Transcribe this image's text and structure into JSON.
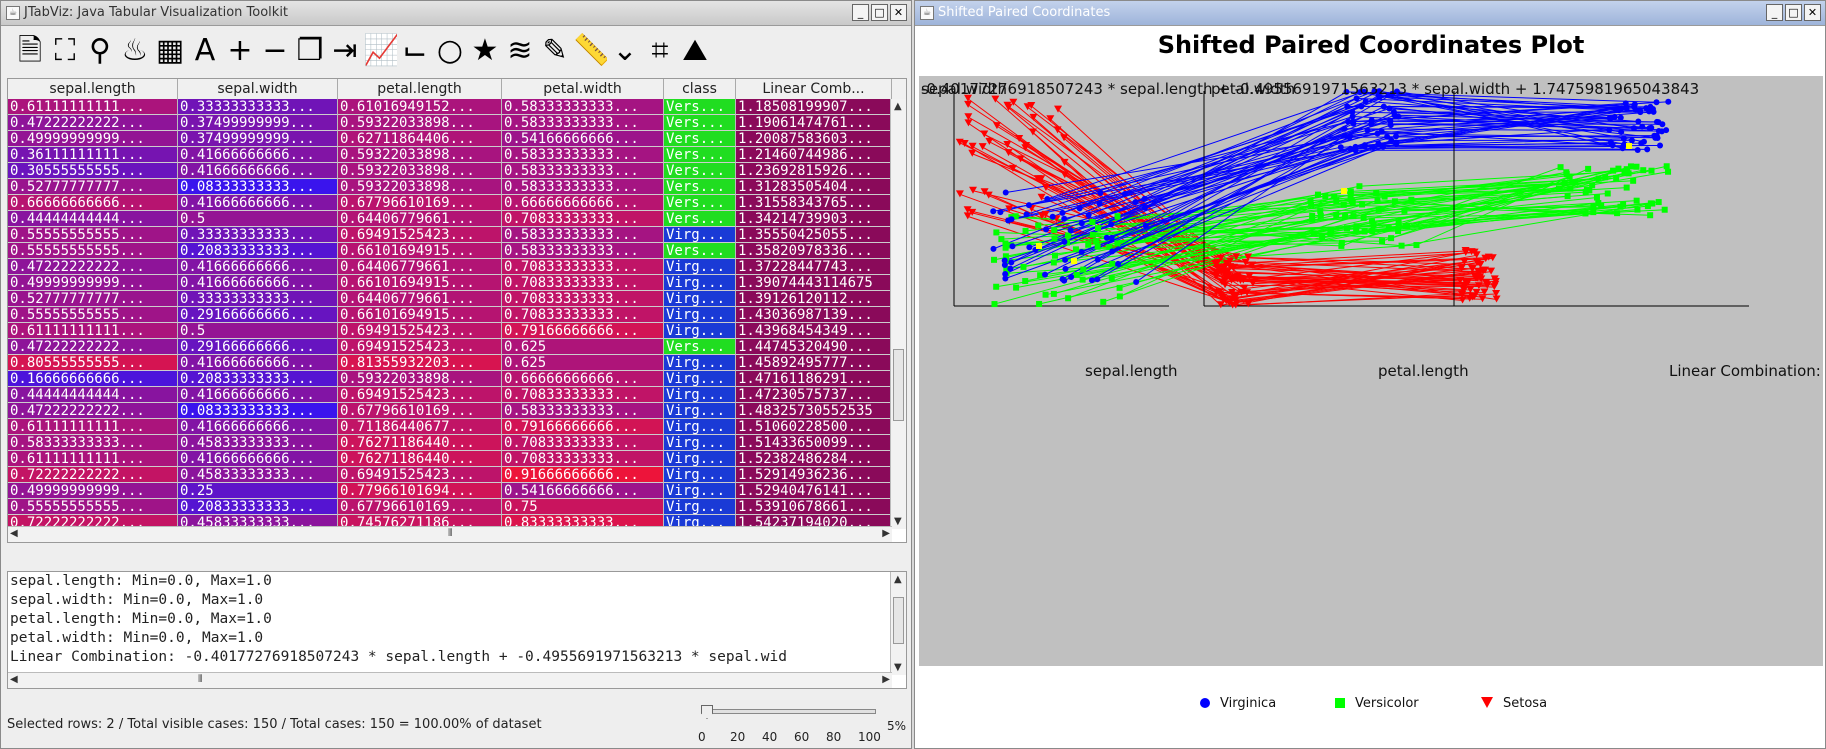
{
  "left_window": {
    "title": "JTabViz: Java Tabular Visualization Toolkit",
    "toolbar_icons": [
      "open-file-icon",
      "fullscreen-icon",
      "location-pin-icon",
      "flame-icon",
      "table-icon",
      "font-icon",
      "plus-icon",
      "minus-icon",
      "copy-icon",
      "export-icon",
      "line-chart-icon",
      "step-chart-icon",
      "circle-icon",
      "star-icon",
      "layers-icon",
      "eyedropper-icon",
      "ruler-icon",
      "chevron-double-down-icon",
      "crop-icon",
      "area-chart-icon"
    ],
    "table": {
      "columns": [
        "sepal.length",
        "sepal.width",
        "petal.length",
        "petal.width",
        "class",
        "Linear Comb..."
      ],
      "rows": [
        [
          "0.61111111111...",
          "0.33333333333...",
          "0.61016949152...",
          "0.58333333333...",
          "Vers...",
          "1.18508199907..."
        ],
        [
          "0.47222222222...",
          "0.37499999999...",
          "0.59322033898...",
          "0.58333333333...",
          "Vers...",
          "1.19061474761..."
        ],
        [
          "0.49999999999...",
          "0.37499999999...",
          "0.62711864406...",
          "0.54166666666...",
          "Vers...",
          "1.20087583603..."
        ],
        [
          "0.36111111111...",
          "0.41666666666...",
          "0.59322033898...",
          "0.58333333333...",
          "Vers...",
          "1.21460744986..."
        ],
        [
          "0.30555555555...",
          "0.41666666666...",
          "0.59322033898...",
          "0.58333333333...",
          "Vers...",
          "1.23692815926..."
        ],
        [
          "0.52777777777...",
          "0.08333333333...",
          "0.59322033898...",
          "0.58333333333...",
          "Vers...",
          "1.31283505404..."
        ],
        [
          "0.66666666666...",
          "0.41666666666...",
          "0.67796610169...",
          "0.66666666666...",
          "Vers...",
          "1.31558343765..."
        ],
        [
          "0.44444444444...",
          "0.5",
          "0.64406779661...",
          "0.70833333333...",
          "Vers...",
          "1.34214739903..."
        ],
        [
          "0.55555555555...",
          "0.33333333333...",
          "0.69491525423...",
          "0.58333333333...",
          "Virg...",
          "1.35550425055..."
        ],
        [
          "0.55555555555...",
          "0.20833333333...",
          "0.66101694915...",
          "0.58333333333...",
          "Vers...",
          "1.35820978336..."
        ],
        [
          "0.47222222222...",
          "0.41666666666...",
          "0.64406779661...",
          "0.70833333333...",
          "Virg...",
          "1.37228447743..."
        ],
        [
          "0.49999999999...",
          "0.41666666666...",
          "0.66101694915...",
          "0.70833333333...",
          "Virg...",
          "1.39074443114675"
        ],
        [
          "0.52777777777...",
          "0.33333333333...",
          "0.64406779661...",
          "0.70833333333...",
          "Virg...",
          "1.39126120112..."
        ],
        [
          "0.55555555555...",
          "0.29166666666...",
          "0.66101694915...",
          "0.70833333333...",
          "Virg...",
          "1.43036987139..."
        ],
        [
          "0.61111111111...",
          "0.5",
          "0.69491525423...",
          "0.79166666666...",
          "Virg...",
          "1.43968454349..."
        ],
        [
          "0.47222222222...",
          "0.29166666666...",
          "0.69491525423...",
          "0.625",
          "Vers...",
          "1.44745320490..."
        ],
        [
          "0.80555555555...",
          "0.41666666666...",
          "0.81355932203...",
          "0.625",
          "Virg...",
          "1.45892495777..."
        ],
        [
          "0.16666666666...",
          "0.20833333333...",
          "0.59322033898...",
          "0.66666666666...",
          "Virg...",
          "1.47161186291..."
        ],
        [
          "0.44444444444...",
          "0.41666666666...",
          "0.69491525423...",
          "0.70833333333...",
          "Virg...",
          "1.47230575737..."
        ],
        [
          "0.47222222222...",
          "0.08333333333...",
          "0.67796610169...",
          "0.58333333333...",
          "Virg...",
          "1.48325730552535"
        ],
        [
          "0.61111111111...",
          "0.41666666666...",
          "0.71186440677...",
          "0.79166666666...",
          "Virg...",
          "1.51060228500..."
        ],
        [
          "0.58333333333...",
          "0.45833333333...",
          "0.76271186440...",
          "0.70833333333...",
          "Virg...",
          "1.51433650099..."
        ],
        [
          "0.61111111111...",
          "0.41666666666...",
          "0.76271186440...",
          "0.70833333333...",
          "Virg...",
          "1.52382486284..."
        ],
        [
          "0.72222222222...",
          "0.45833333333...",
          "0.69491525423...",
          "0.91666666666...",
          "Virg...",
          "1.52914936236..."
        ],
        [
          "0.49999999999...",
          "0.25",
          "0.77966101694...",
          "0.54166666666...",
          "Virg...",
          "1.52940476141..."
        ],
        [
          "0.55555555555...",
          "0.20833333333...",
          "0.67796610169...",
          "0.75",
          "Virg...",
          "1.53910678661..."
        ],
        [
          "0.72222222222...",
          "0.45833333333...",
          "0.74576271186...",
          "0.83333333333...",
          "Virg...",
          "1.54237194020..."
        ],
        [
          "1.0",
          "0.74999999999...",
          "0.91525423728...",
          "0.79166666666...",
          "Virg...",
          "1.54461128781..."
        ]
      ]
    },
    "info_lines": [
      "sepal.length: Min=0.0, Max=1.0",
      "sepal.width: Min=0.0, Max=1.0",
      "petal.length: Min=0.0, Max=1.0",
      "petal.width: Min=0.0, Max=1.0",
      "Linear Combination: -0.40177276918507243 * sepal.length + -0.4955691971563213 * sepal.wid"
    ],
    "status_text": "Selected rows: 2 / Total visible cases: 150 / Total cases: 150 = 100.00% of dataset",
    "slider": {
      "value": 0,
      "ticks": [
        "0",
        "20",
        "40",
        "60",
        "80",
        "100"
      ],
      "percent_label": "5%"
    }
  },
  "right_window": {
    "title": "Shifted Paired Coordinates",
    "plot_title": "Shifted Paired Coordinates Plot",
    "axis_top_labels": [
      "sepal.width",
      "petal.width",
      "-0.40177276918507243 * sepal.length + -0.4955691971563213 * sepal.width + 1.7475981965043843"
    ],
    "axis_bottom_labels": [
      "sepal.length",
      "petal.length",
      "Linear Combination:"
    ],
    "legend": [
      "Virginica",
      "Versicolor",
      "Setosa"
    ],
    "colors": {
      "virginica": "#0000ff",
      "versicolor": "#00ff00",
      "setosa": "#ff0000",
      "selected": "#ffff00"
    }
  }
}
